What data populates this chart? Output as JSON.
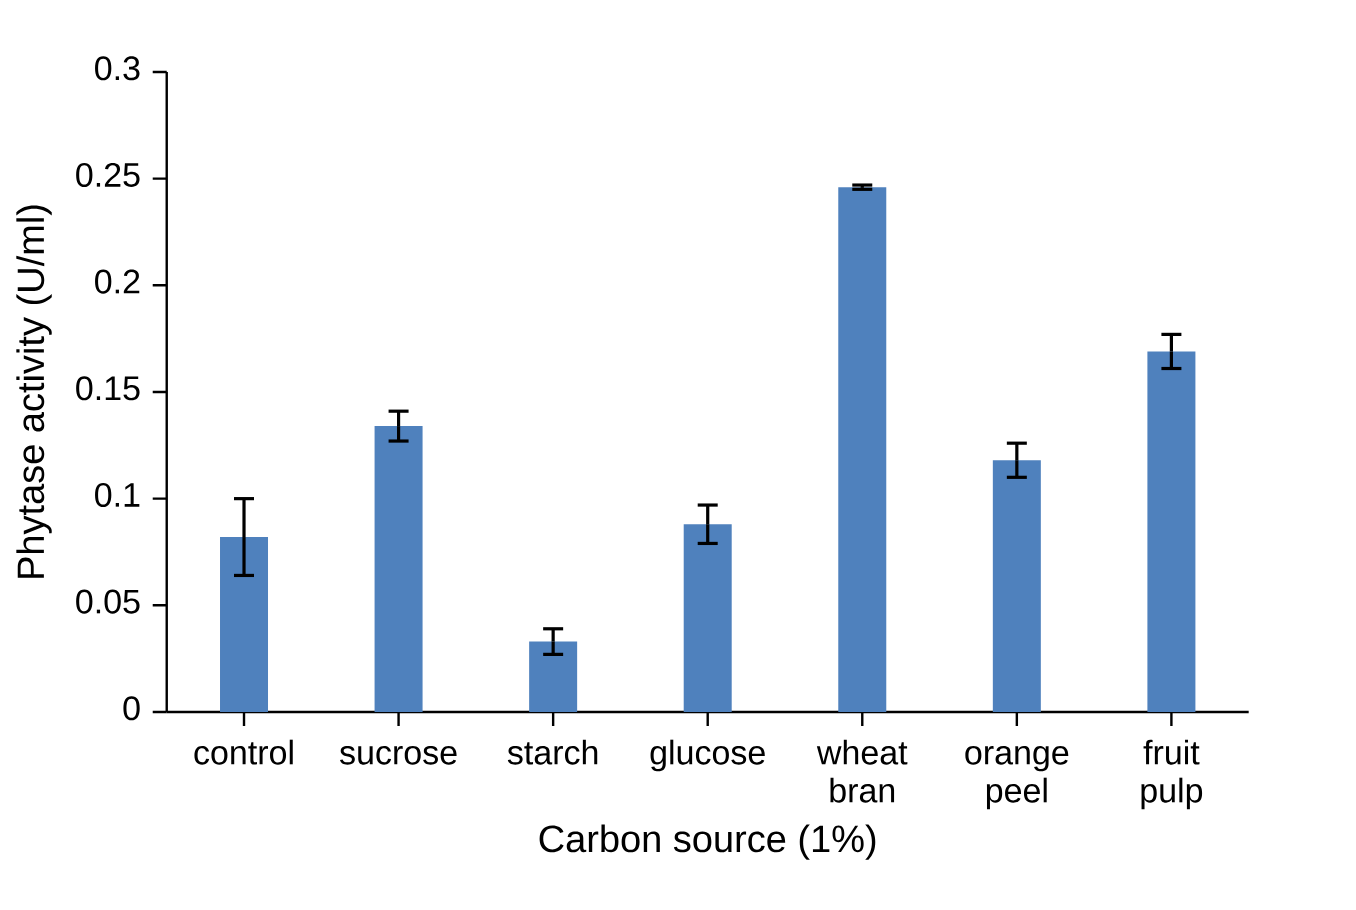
{
  "chart_data": {
    "type": "bar",
    "xlabel": "Carbon source (1%)",
    "ylabel": "Phytase activity (U/ml)",
    "categories": [
      "control",
      "sucrose",
      "starch",
      "glucose",
      "wheat bran",
      "orange peel",
      "fruit pulp"
    ],
    "values": [
      0.082,
      0.134,
      0.033,
      0.088,
      0.246,
      0.118,
      0.169
    ],
    "errors": [
      0.018,
      0.007,
      0.006,
      0.009,
      0.001,
      0.008,
      0.008
    ],
    "color": "#4f81bd",
    "ylim": [
      0,
      0.3
    ],
    "yticks": [
      0,
      0.05,
      0.1,
      0.15,
      0.2,
      0.25,
      0.3
    ]
  }
}
